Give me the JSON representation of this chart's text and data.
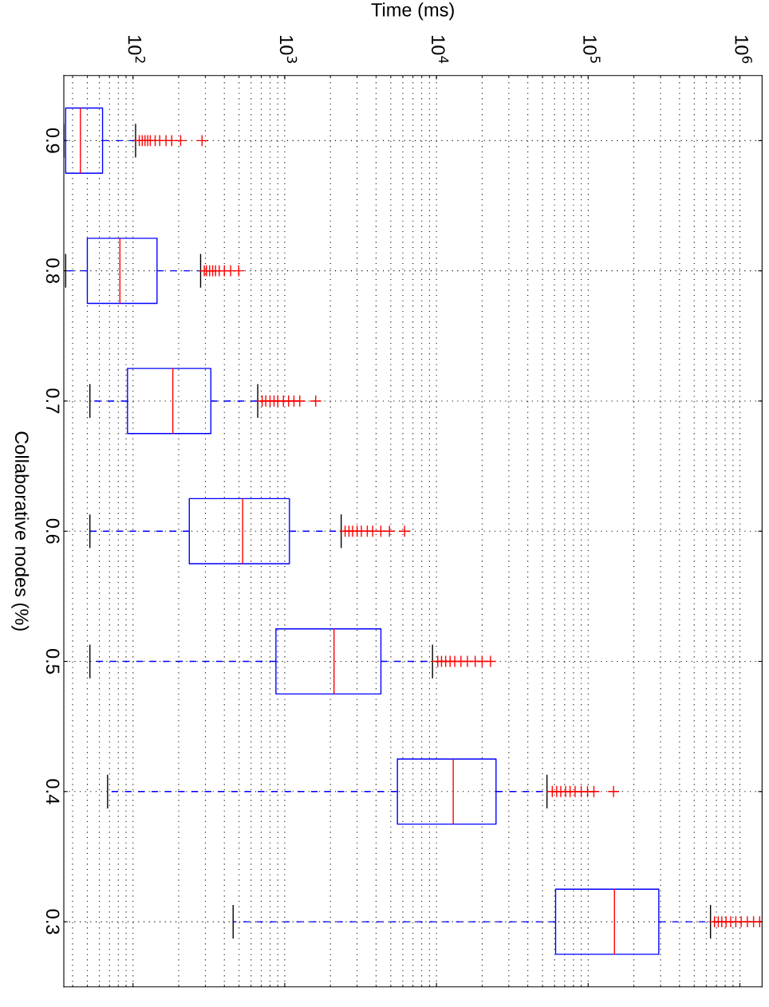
{
  "chart_data": {
    "type": "box",
    "orientation": "horizontal",
    "xlabel": "Time (ms)",
    "ylabel": "Collaborative nodes (%)",
    "categories": [
      "0.9",
      "0.8",
      "0.7",
      "0.6",
      "0.5",
      "0.4",
      "0.3"
    ],
    "log": "x",
    "grid": true,
    "xlim": [
      35,
      1400000
    ],
    "xticks": [
      {
        "value": 100,
        "label": "10$^{2}$"
      },
      {
        "value": 1000,
        "label": "10$^{3}$"
      },
      {
        "value": 10000,
        "label": "10$^{4}$"
      },
      {
        "value": 100000,
        "label": "10$^{5}$"
      },
      {
        "value": 1000000,
        "label": "10$^{6}$"
      }
    ],
    "series": [
      {
        "color": "#0000ff",
        "boxes": [
          {
            "low": 35,
            "q1": 36,
            "median": 45,
            "q3": 63,
            "high": 104,
            "outliers": [
              110,
              115,
              120,
              125,
              130,
              140,
              150,
              165,
              180,
              206,
              285
            ]
          },
          {
            "low": 36,
            "q1": 50,
            "median": 82,
            "q3": 144,
            "high": 279,
            "outliers": [
              295,
              305,
              320,
              335,
              350,
              370,
              400,
              440,
              497
            ]
          },
          {
            "low": 52,
            "q1": 92,
            "median": 183,
            "q3": 326,
            "high": 664,
            "outliers": [
              710,
              750,
              800,
              850,
              900,
              980,
              1060,
              1150,
              1256,
              1600
            ]
          },
          {
            "low": 52,
            "q1": 235,
            "median": 528,
            "q3": 1074,
            "high": 2355,
            "outliers": [
              2500,
              2650,
              2800,
              3000,
              3200,
              3500,
              3800,
              4300,
              4900,
              6166
            ]
          },
          {
            "low": 52,
            "q1": 875,
            "median": 2113,
            "q3": 4305,
            "high": 9420,
            "outliers": [
              10200,
              10800,
              11500,
              12300,
              13200,
              14500,
              16000,
              18000,
              20000,
              22700
            ]
          },
          {
            "low": 68,
            "q1": 5530,
            "median": 12900,
            "q3": 24700,
            "high": 53500,
            "outliers": [
              58000,
              62000,
              66000,
              71000,
              76000,
              82000,
              90000,
              99000,
              109000,
              147000
            ]
          },
          {
            "low": 457,
            "q1": 61000,
            "median": 149000,
            "q3": 292000,
            "high": 640000,
            "outliers": [
              680000,
              720000,
              760000,
              810000,
              870000,
              940000,
              1020000,
              1120000,
              1230000,
              1350000
            ]
          }
        ]
      }
    ]
  }
}
